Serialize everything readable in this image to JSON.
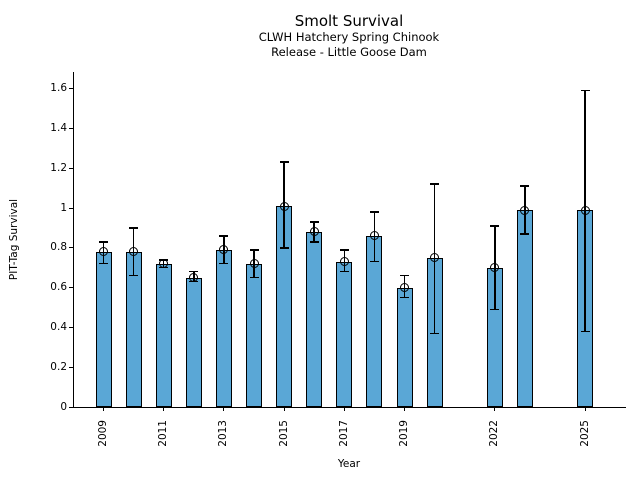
{
  "figure": {
    "title": "Smolt Survival",
    "subtitle_line1": "CLWH Hatchery Spring Chinook",
    "subtitle_line2": "Release - Little Goose Dam"
  },
  "chart_data": {
    "type": "bar",
    "title": "Smolt Survival",
    "subtitle": [
      "CLWH Hatchery Spring Chinook",
      "Release - Little Goose Dam"
    ],
    "xlabel": "Year",
    "ylabel": "PIT-Tag Survival",
    "ylim": [
      0,
      1.684
    ],
    "grid": false,
    "legend": "none",
    "bar_color": "#5aa7d6",
    "edge_color": "#000000",
    "error_bars": true,
    "error_caps": true,
    "marker": "open-circle",
    "ytick_values": [
      0,
      0.2,
      0.4,
      0.6,
      0.8,
      1.0,
      1.2,
      1.4,
      1.6
    ],
    "ytick_labels": [
      "0",
      "0.2",
      "0.4",
      "0.6",
      "0.8",
      "1",
      "1.2",
      "1.4",
      "1.6"
    ],
    "xtick_years": [
      2009,
      2011,
      2013,
      2015,
      2017,
      2019,
      2022,
      2025
    ],
    "x_year_range": [
      2009,
      2025
    ],
    "missing_years": [
      2021,
      2024
    ],
    "series": [
      {
        "name": "PIT-Tag Survival",
        "points": [
          {
            "year": 2009,
            "value": 0.78,
            "err_low": 0.72,
            "err_high": 0.83
          },
          {
            "year": 2010,
            "value": 0.78,
            "err_low": 0.66,
            "err_high": 0.9
          },
          {
            "year": 2011,
            "value": 0.72,
            "err_low": 0.7,
            "err_high": 0.74
          },
          {
            "year": 2012,
            "value": 0.65,
            "err_low": 0.63,
            "err_high": 0.68
          },
          {
            "year": 2013,
            "value": 0.79,
            "err_low": 0.72,
            "err_high": 0.86
          },
          {
            "year": 2014,
            "value": 0.72,
            "err_low": 0.65,
            "err_high": 0.79
          },
          {
            "year": 2015,
            "value": 1.01,
            "err_low": 0.8,
            "err_high": 1.23
          },
          {
            "year": 2016,
            "value": 0.88,
            "err_low": 0.83,
            "err_high": 0.93
          },
          {
            "year": 2017,
            "value": 0.73,
            "err_low": 0.68,
            "err_high": 0.79
          },
          {
            "year": 2018,
            "value": 0.86,
            "err_low": 0.73,
            "err_high": 0.98
          },
          {
            "year": 2019,
            "value": 0.6,
            "err_low": 0.55,
            "err_high": 0.66
          },
          {
            "year": 2020,
            "value": 0.75,
            "err_low": 0.37,
            "err_high": 1.12
          },
          {
            "year": 2022,
            "value": 0.7,
            "err_low": 0.49,
            "err_high": 0.91
          },
          {
            "year": 2023,
            "value": 0.99,
            "err_low": 0.87,
            "err_high": 1.11
          },
          {
            "year": 2025,
            "value": 0.99,
            "err_low": 0.38,
            "err_high": 1.59
          }
        ]
      }
    ]
  }
}
